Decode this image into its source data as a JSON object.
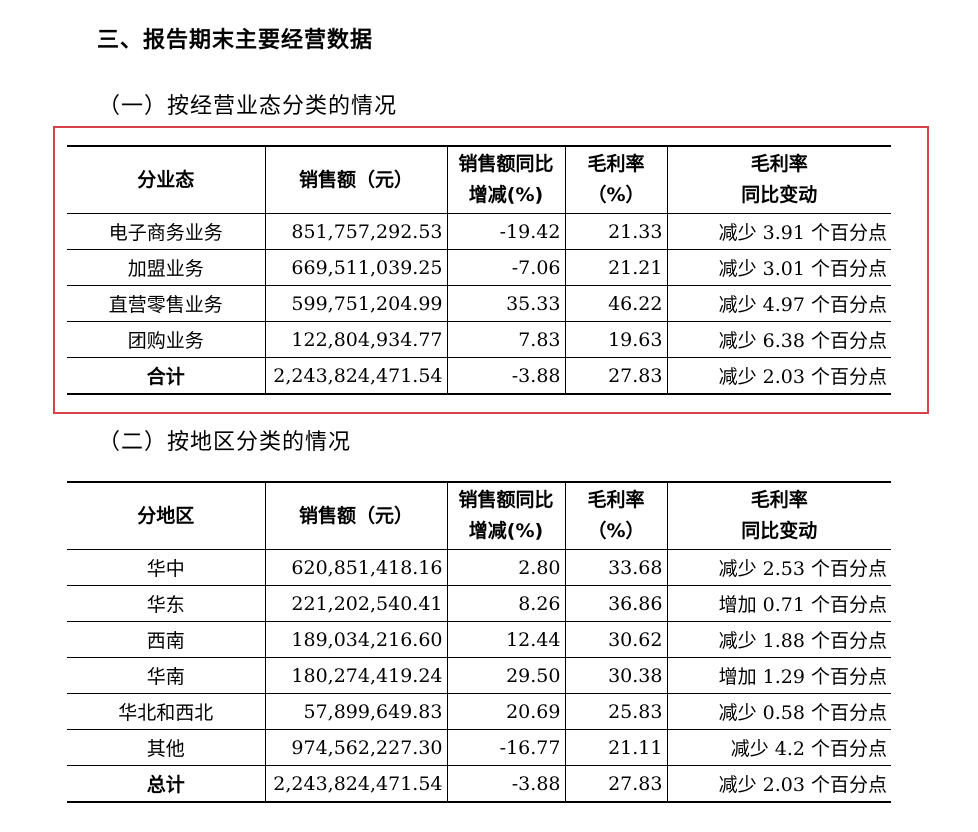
{
  "heading": "三、报告期末主要经营数据",
  "section1": {
    "title": "（一）按经营业态分类的情况",
    "headers": [
      "分业态",
      "销售额（元）",
      "销售额同比",
      "增减(%)",
      "毛利率",
      "（%）",
      "毛利率",
      "同比变动"
    ],
    "rows": [
      [
        "电子商务业务",
        "851,757,292.53",
        "-19.42",
        "21.33",
        "减少 3.91 个百分点"
      ],
      [
        "加盟业务",
        "669,511,039.25",
        "-7.06",
        "21.21",
        "减少 3.01 个百分点"
      ],
      [
        "直营零售业务",
        "599,751,204.99",
        "35.33",
        "46.22",
        "减少 4.97 个百分点"
      ],
      [
        "团购业务",
        "122,804,934.77",
        "7.83",
        "19.63",
        "减少 6.38 个百分点"
      ]
    ],
    "total": [
      "合计",
      "2,243,824,471.54",
      "-3.88",
      "27.83",
      "减少 2.03 个百分点"
    ]
  },
  "section2": {
    "title": "（二）按地区分类的情况",
    "headers": [
      "分地区",
      "销售额（元）",
      "销售额同比",
      "增减(%)",
      "毛利率",
      "（%）",
      "毛利率",
      "同比变动"
    ],
    "rows": [
      [
        "华中",
        "620,851,418.16",
        "2.80",
        "33.68",
        "减少 2.53 个百分点"
      ],
      [
        "华东",
        "221,202,540.41",
        "8.26",
        "36.86",
        "增加 0.71 个百分点"
      ],
      [
        "西南",
        "189,034,216.60",
        "12.44",
        "30.62",
        "减少 1.88 个百分点"
      ],
      [
        "华南",
        "180,274,419.24",
        "29.50",
        "30.38",
        "增加 1.29 个百分点"
      ],
      [
        "华北和西北",
        "57,899,649.83",
        "20.69",
        "25.83",
        "减少 0.58 个百分点"
      ],
      [
        "其他",
        "974,562,227.30",
        "-16.77",
        "21.11",
        "减少 4.2 个百分点"
      ]
    ],
    "total": [
      "总计",
      "2,243,824,471.54",
      "-3.88",
      "27.83",
      "减少 2.03 个百分点"
    ]
  }
}
